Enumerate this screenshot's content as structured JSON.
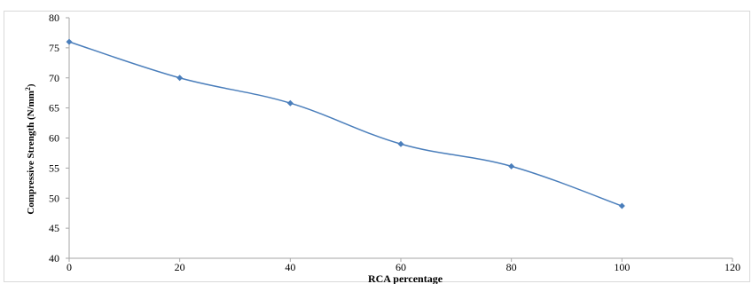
{
  "chart_data": {
    "type": "line",
    "x": [
      0,
      20,
      40,
      60,
      80,
      100
    ],
    "series": [
      {
        "values": [
          76,
          70,
          65.8,
          59,
          55.3,
          48.7
        ]
      }
    ],
    "xlabel": "RCA percentage",
    "ylabel_main": "Compressive  Strength (N/mm",
    "ylabel_sup": "2",
    "ylabel_end": ")",
    "xlim": [
      0,
      120
    ],
    "ylim": [
      40,
      80
    ],
    "xticks": [
      0,
      20,
      40,
      60,
      80,
      100,
      120
    ],
    "yticks": [
      40,
      45,
      50,
      55,
      60,
      65,
      70,
      75,
      80
    ],
    "grid": false,
    "line_color": "#4a7ebb",
    "marker": "diamond"
  }
}
